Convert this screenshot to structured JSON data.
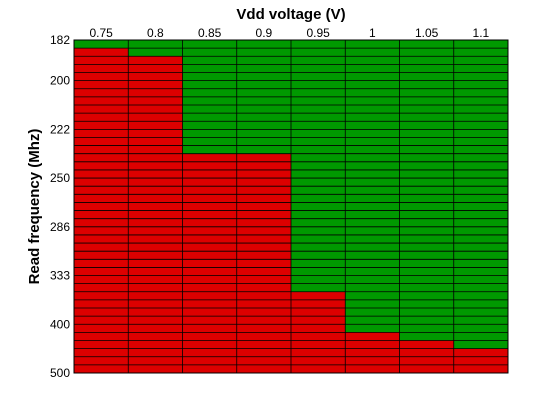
{
  "chart_data": {
    "type": "heatmap",
    "title": "",
    "xlabel": "Vdd voltage (V)",
    "ylabel": "Read frequency (Mhz)",
    "x_ticks": [
      "0.75",
      "0.8",
      "0.85",
      "0.9",
      "0.95",
      "1",
      "1.05",
      "1.1"
    ],
    "y_tick_labels": [
      "182",
      "200",
      "222",
      "250",
      "286",
      "333",
      "400",
      "500"
    ],
    "y_tick_rows": [
      0,
      5,
      11,
      17,
      23,
      29,
      35,
      41
    ],
    "row_count": 41,
    "x_axis_position": "top",
    "pass_fail_boundary_rows": [
      1,
      2,
      14,
      14,
      31,
      36,
      37,
      38
    ],
    "legend": "none",
    "grid": true,
    "colors": {
      "pass": "#009900",
      "fail": "#dd0000",
      "grid": "#000000"
    }
  }
}
